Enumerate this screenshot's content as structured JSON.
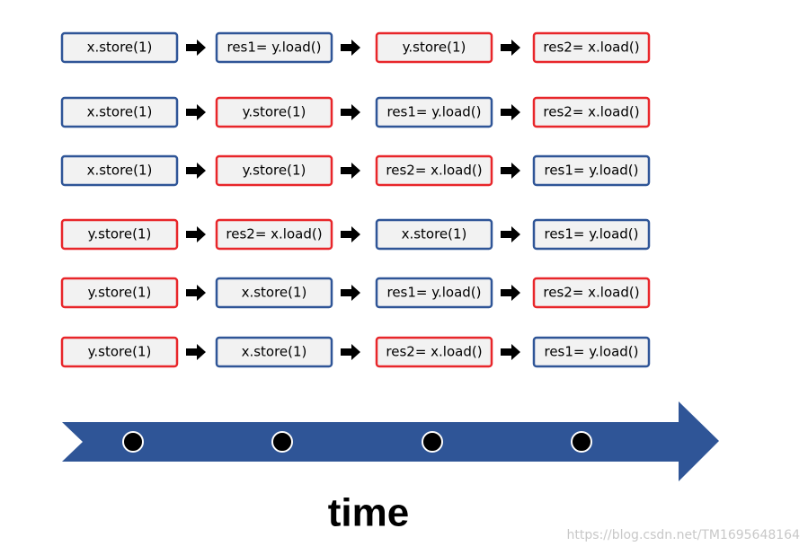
{
  "rows": [
    {
      "steps": [
        {
          "label": "x.store(1)",
          "color": "#2f5597"
        },
        {
          "label": "res1= y.load()",
          "color": "#2f5597"
        },
        {
          "label": "y.store(1)",
          "color": "#e8262a"
        },
        {
          "label": "res2= x.load()",
          "color": "#e8262a"
        }
      ]
    },
    {
      "steps": [
        {
          "label": "x.store(1)",
          "color": "#2f5597"
        },
        {
          "label": "y.store(1)",
          "color": "#e8262a"
        },
        {
          "label": "res1= y.load()",
          "color": "#2f5597"
        },
        {
          "label": "res2= x.load()",
          "color": "#e8262a"
        }
      ]
    },
    {
      "steps": [
        {
          "label": "x.store(1)",
          "color": "#2f5597"
        },
        {
          "label": "y.store(1)",
          "color": "#e8262a"
        },
        {
          "label": "res2= x.load()",
          "color": "#e8262a"
        },
        {
          "label": "res1= y.load()",
          "color": "#2f5597"
        }
      ]
    },
    {
      "steps": [
        {
          "label": "y.store(1)",
          "color": "#e8262a"
        },
        {
          "label": "res2= x.load()",
          "color": "#e8262a"
        },
        {
          "label": "x.store(1)",
          "color": "#2f5597"
        },
        {
          "label": "res1= y.load()",
          "color": "#2f5597"
        }
      ]
    },
    {
      "steps": [
        {
          "label": "y.store(1)",
          "color": "#e8262a"
        },
        {
          "label": "x.store(1)",
          "color": "#2f5597"
        },
        {
          "label": "res1= y.load()",
          "color": "#2f5597"
        },
        {
          "label": "res2= x.load()",
          "color": "#e8262a"
        }
      ]
    },
    {
      "steps": [
        {
          "label": "y.store(1)",
          "color": "#e8262a"
        },
        {
          "label": "x.store(1)",
          "color": "#2f5597"
        },
        {
          "label": "res2= x.load()",
          "color": "#e8262a"
        },
        {
          "label": "res1= y.load()",
          "color": "#2f5597"
        }
      ]
    }
  ],
  "timeline": {
    "label": "time",
    "color": "#2f5597"
  },
  "watermark": "https://blog.csdn.net/TM1695648164"
}
